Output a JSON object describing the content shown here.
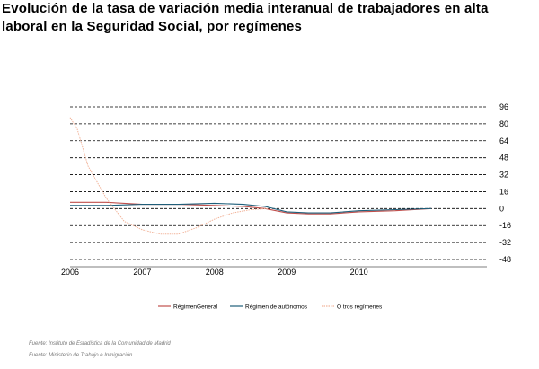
{
  "title": "Evolución de la tasa de variación media interanual de trabajadores en alta laboral en la Seguridad Social, por  regímenes",
  "sources": [
    "Fuente: Instituto de Estadística de la Comunidad de Madrid",
    "Fuente: Ministerio de Trabajo e Inmigración"
  ],
  "chart_data": {
    "type": "line",
    "title": "Evolución de la tasa de variación media interanual de trabajadores en alta laboral en la Seguridad Social, por  regímenes",
    "xlabel": "",
    "ylabel": "",
    "x_ticks": [
      "2006",
      "2007",
      "2008",
      "2009",
      "2010"
    ],
    "y_ticks": [
      96,
      80,
      64,
      48,
      32,
      16,
      0,
      -16,
      -32,
      -48
    ],
    "ylim": [
      -48,
      96
    ],
    "xlim": [
      2006,
      2011.92
    ],
    "y_axis_side": "right",
    "grid": "horizontal dashed",
    "legend_position": "bottom",
    "series": [
      {
        "name": "RégimenGeneral",
        "color": "#c0504d",
        "x": [
          2006.0,
          2006.5,
          2007.0,
          2007.5,
          2008.0,
          2008.4,
          2008.7,
          2009.0,
          2009.3,
          2009.6,
          2010.0,
          2010.5,
          2011.0
        ],
        "y": [
          6,
          6,
          4,
          4,
          3,
          2,
          0,
          -4,
          -5,
          -5,
          -3,
          -2,
          0
        ]
      },
      {
        "name": "Régimen de autónomos",
        "color": "#1f5f7a",
        "x": [
          2006.0,
          2006.5,
          2007.0,
          2007.5,
          2008.0,
          2008.4,
          2008.7,
          2009.0,
          2009.3,
          2009.6,
          2010.0,
          2010.5,
          2011.0
        ],
        "y": [
          3,
          3,
          4,
          4,
          5,
          4,
          2,
          -3,
          -4,
          -4,
          -2,
          -1,
          0
        ]
      },
      {
        "name": "O tros regímenes",
        "color": "#f2b49a",
        "x": [
          2006.0,
          2006.1,
          2006.25,
          2006.5,
          2006.75,
          2007.0,
          2007.25,
          2007.5,
          2007.75,
          2008.0,
          2008.25,
          2008.5,
          2008.75
        ],
        "y": [
          86,
          75,
          40,
          10,
          -12,
          -20,
          -24,
          -24,
          -18,
          -10,
          -4,
          -1,
          0
        ]
      }
    ]
  }
}
